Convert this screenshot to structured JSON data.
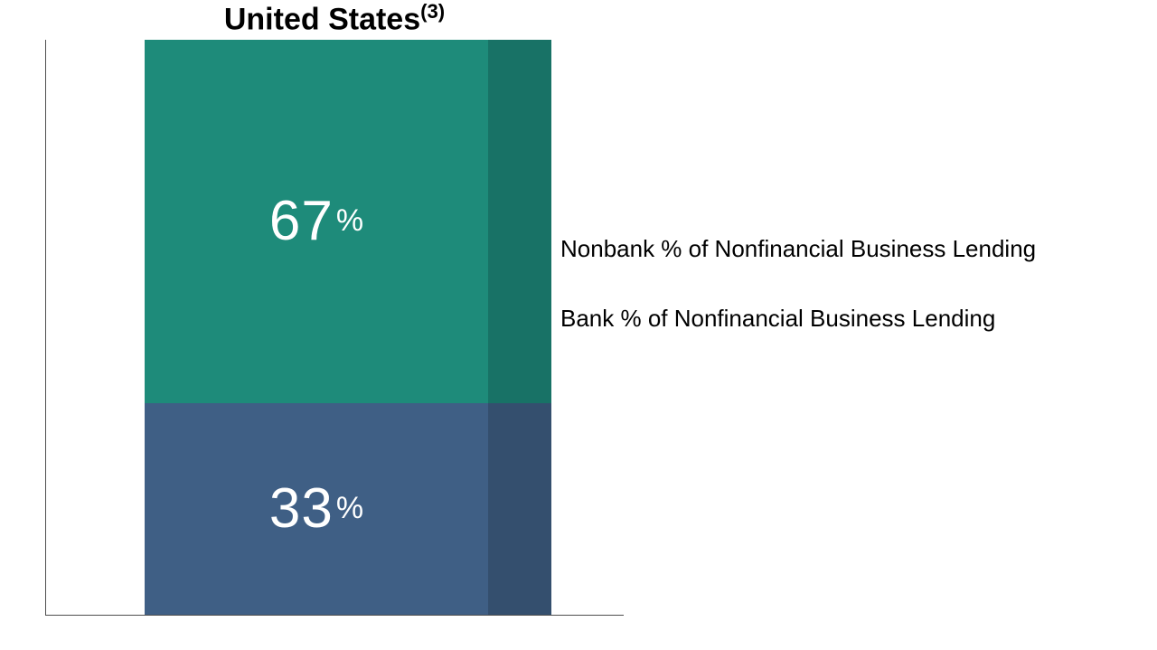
{
  "chart": {
    "type": "stacked-bar",
    "title_main": "United States",
    "title_sup": "(3)",
    "title_fontsize": 34,
    "axis_color": "#4f4f4f",
    "background_color": "#ffffff",
    "segments": [
      {
        "key": "nonbank",
        "value": 67,
        "label_num": "67",
        "label_pct": "%",
        "color": "#1e8b7a",
        "shade_color": "#187266"
      },
      {
        "key": "bank",
        "value": 33,
        "label_num": "33",
        "label_pct": "%",
        "color": "#3f5f85",
        "shade_color": "#344f6e"
      }
    ],
    "value_fontsize_num": 62,
    "value_fontsize_pct": 34,
    "value_color": "#ffffff"
  },
  "legend": {
    "items": [
      {
        "key": "nonbank",
        "text": "Nonbank % of Nonfinancial Business Lending"
      },
      {
        "key": "bank",
        "text": "Bank % of Nonfinancial Business Lending"
      }
    ],
    "fontsize": 26,
    "text_color": "#000000"
  }
}
